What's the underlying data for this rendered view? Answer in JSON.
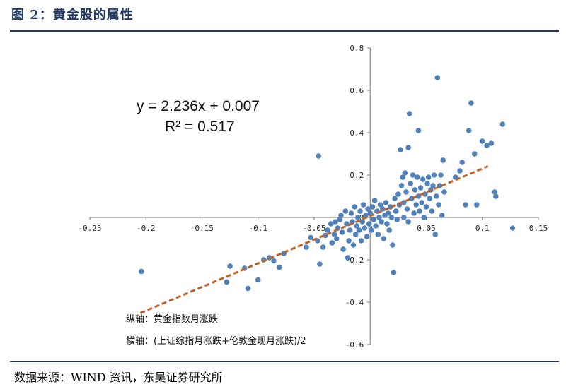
{
  "header": {
    "title": "图 2：黄金股的属性"
  },
  "footer": {
    "source": "数据来源：WIND 资讯，东吴证券研究所"
  },
  "chart_data": {
    "type": "scatter",
    "title": "",
    "xlabel": "",
    "ylabel": "",
    "xlim": [
      -0.25,
      0.15
    ],
    "ylim": [
      -0.6,
      0.8
    ],
    "x_ticks": [
      "-0.25",
      "-0.2",
      "-0.15",
      "-0.1",
      "-0.05",
      "0",
      "0.05",
      "0.1",
      "0.15"
    ],
    "y_ticks": [
      "0.8",
      "0.6",
      "0.4",
      "0.2",
      "0",
      "-0.2",
      "-0.4",
      "-0.6"
    ],
    "point_color": "#4f81bd",
    "trendline": {
      "slope": 2.236,
      "intercept": 0.007,
      "color": "#c0622a",
      "style": "dashed",
      "x_range": [
        -0.205,
        0.105
      ]
    },
    "annotations": {
      "equation": "y = 2.236x + 0.007",
      "r_squared": "R² = 0.517",
      "y_axis_note": "纵轴：黄金指数月涨跌",
      "x_axis_note": "横轴：(上证综指月涨跌+伦敦金现月涨跌)/2"
    },
    "points": [
      [
        -0.204,
        -0.255
      ],
      [
        -0.128,
        -0.305
      ],
      [
        -0.125,
        -0.23
      ],
      [
        -0.112,
        -0.24
      ],
      [
        -0.109,
        -0.335
      ],
      [
        -0.1,
        -0.295
      ],
      [
        -0.095,
        -0.2
      ],
      [
        -0.09,
        -0.19
      ],
      [
        -0.086,
        -0.205
      ],
      [
        -0.081,
        -0.235
      ],
      [
        -0.077,
        -0.17
      ],
      [
        -0.057,
        -0.14
      ],
      [
        -0.053,
        -0.095
      ],
      [
        -0.047,
        -0.11
      ],
      [
        -0.045,
        -0.22
      ],
      [
        -0.046,
        0.29
      ],
      [
        -0.042,
        -0.14
      ],
      [
        -0.04,
        -0.085
      ],
      [
        -0.038,
        -0.06
      ],
      [
        -0.035,
        -0.03
      ],
      [
        -0.034,
        -0.12
      ],
      [
        -0.032,
        -0.08
      ],
      [
        -0.031,
        -0.02
      ],
      [
        -0.03,
        -0.1
      ],
      [
        -0.029,
        -0.05
      ],
      [
        -0.027,
        -0.01
      ],
      [
        -0.026,
        0.01
      ],
      [
        -0.025,
        -0.07
      ],
      [
        -0.024,
        -0.15
      ],
      [
        -0.022,
        0.03
      ],
      [
        -0.021,
        -0.03
      ],
      [
        -0.02,
        -0.19
      ],
      [
        -0.019,
        -0.11
      ],
      [
        -0.018,
        -0.06
      ],
      [
        -0.017,
        0.02
      ],
      [
        -0.016,
        -0.02
      ],
      [
        -0.015,
        -0.13
      ],
      [
        -0.014,
        0.05
      ],
      [
        -0.013,
        -0.08
      ],
      [
        -0.012,
        -0.04
      ],
      [
        -0.011,
        0.0
      ],
      [
        -0.01,
        -0.06
      ],
      [
        -0.009,
        0.03
      ],
      [
        -0.008,
        -0.11
      ],
      [
        -0.007,
        -0.02
      ],
      [
        -0.006,
        0.06
      ],
      [
        -0.005,
        -0.05
      ],
      [
        -0.004,
        0.01
      ],
      [
        -0.003,
        -0.09
      ],
      [
        -0.002,
        0.04
      ],
      [
        -0.001,
        -0.03
      ],
      [
        0.0,
        0.02
      ],
      [
        0.001,
        -0.06
      ],
      [
        0.002,
        0.05
      ],
      [
        0.003,
        -0.01
      ],
      [
        0.004,
        0.08
      ],
      [
        0.005,
        -0.04
      ],
      [
        0.006,
        0.03
      ],
      [
        0.007,
        -0.08
      ],
      [
        0.008,
        0.0
      ],
      [
        0.009,
        0.06
      ],
      [
        0.01,
        -0.02
      ],
      [
        0.011,
        0.04
      ],
      [
        0.012,
        -0.1
      ],
      [
        0.013,
        0.01
      ],
      [
        0.014,
        0.07
      ],
      [
        0.015,
        -0.03
      ],
      [
        0.016,
        0.02
      ],
      [
        0.017,
        -0.06
      ],
      [
        0.018,
        0.05
      ],
      [
        0.019,
        0.0
      ],
      [
        0.02,
        -0.13
      ],
      [
        0.021,
        -0.26
      ],
      [
        0.022,
        0.09
      ],
      [
        0.023,
        0.03
      ],
      [
        0.024,
        -0.01
      ],
      [
        0.025,
        0.11
      ],
      [
        0.026,
        0.06
      ],
      [
        0.027,
        0.32
      ],
      [
        0.028,
        0.15
      ],
      [
        0.029,
        0.19
      ],
      [
        0.03,
        0.07
      ],
      [
        0.03,
        0.0
      ],
      [
        0.031,
        0.21
      ],
      [
        0.032,
        0.12
      ],
      [
        0.033,
        0.04
      ],
      [
        0.034,
        -0.02
      ],
      [
        0.034,
        0.33
      ],
      [
        0.035,
        0.49
      ],
      [
        0.036,
        0.16
      ],
      [
        0.037,
        0.09
      ],
      [
        0.038,
        0.2
      ],
      [
        0.039,
        0.02
      ],
      [
        0.04,
        0.13
      ],
      [
        0.041,
        0.06
      ],
      [
        0.042,
        0.19
      ],
      [
        0.043,
        0.1
      ],
      [
        0.043,
        0.41
      ],
      [
        0.044,
        0.03
      ],
      [
        0.045,
        0.14
      ],
      [
        0.046,
        0.07
      ],
      [
        0.047,
        0.18
      ],
      [
        0.048,
        0.0
      ],
      [
        0.049,
        0.11
      ],
      [
        0.05,
        0.05
      ],
      [
        0.051,
        0.16
      ],
      [
        0.052,
        0.19
      ],
      [
        0.053,
        0.09
      ],
      [
        0.054,
        0.13
      ],
      [
        0.055,
        0.03
      ],
      [
        0.056,
        0.15
      ],
      [
        0.057,
        0.2
      ],
      [
        0.058,
        -0.08
      ],
      [
        0.059,
        0.1
      ],
      [
        0.06,
        0.66
      ],
      [
        0.061,
        0.06
      ],
      [
        0.062,
        0.15
      ],
      [
        0.063,
        0.2
      ],
      [
        0.064,
        0.01
      ],
      [
        0.065,
        0.27
      ],
      [
        0.066,
        0.12
      ],
      [
        0.076,
        0.19
      ],
      [
        0.08,
        0.22
      ],
      [
        0.082,
        0.26
      ],
      [
        0.085,
        0.06
      ],
      [
        0.088,
        0.41
      ],
      [
        0.09,
        0.54
      ],
      [
        0.093,
        0.3
      ],
      [
        0.095,
        0.06
      ],
      [
        0.1,
        0.36
      ],
      [
        0.104,
        0.34
      ],
      [
        0.108,
        0.35
      ],
      [
        0.111,
        0.12
      ],
      [
        0.112,
        0.1
      ],
      [
        0.118,
        0.44
      ],
      [
        0.127,
        -0.05
      ]
    ]
  }
}
